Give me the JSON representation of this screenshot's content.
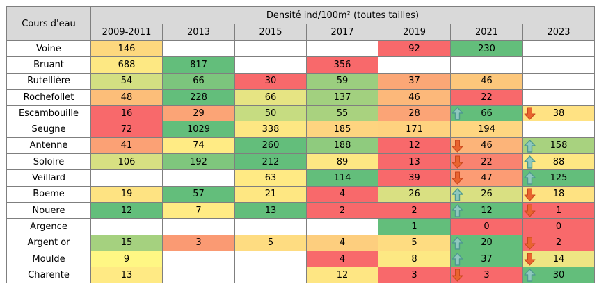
{
  "chart_data": {
    "type": "table",
    "title": "Densité ind/100m² (toutes tailles)",
    "row_header": "Cours d'eau",
    "columns": [
      "2009-2011",
      "2013",
      "2015",
      "2017",
      "2019",
      "2021",
      "2023"
    ],
    "color_scale": {
      "low": "#f8696b",
      "mid": "#ffeb84",
      "high": "#63be7b",
      "empty": "#ffffff"
    },
    "rows": [
      {
        "name": "Voine",
        "cells": [
          {
            "v": "146",
            "c": "#fdd87e"
          },
          {
            "v": "",
            "c": "#ffffff"
          },
          {
            "v": "",
            "c": "#ffffff"
          },
          {
            "v": "",
            "c": "#ffffff"
          },
          {
            "v": "92",
            "c": "#f8696b"
          },
          {
            "v": "230",
            "c": "#63be7b"
          },
          {
            "v": "",
            "c": "#ffffff"
          }
        ]
      },
      {
        "name": "Bruant",
        "cells": [
          {
            "v": "688",
            "c": "#fde883"
          },
          {
            "v": "817",
            "c": "#63be7b"
          },
          {
            "v": "",
            "c": "#ffffff"
          },
          {
            "v": "356",
            "c": "#f8696b"
          },
          {
            "v": "",
            "c": "#ffffff"
          },
          {
            "v": "",
            "c": "#ffffff"
          },
          {
            "v": "",
            "c": "#ffffff"
          }
        ]
      },
      {
        "name": "Rutellière",
        "cells": [
          {
            "v": "54",
            "c": "#d3df82"
          },
          {
            "v": "66",
            "c": "#7cc57d"
          },
          {
            "v": "30",
            "c": "#f8696b"
          },
          {
            "v": "59",
            "c": "#9bce7f"
          },
          {
            "v": "37",
            "c": "#fba776"
          },
          {
            "v": "46",
            "c": "#fcc77b"
          },
          {
            "v": "",
            "c": "#ffffff"
          }
        ]
      },
      {
        "name": "Rochefollet",
        "cells": [
          {
            "v": "48",
            "c": "#fcbe79"
          },
          {
            "v": "228",
            "c": "#63be7b"
          },
          {
            "v": "66",
            "c": "#e6e483"
          },
          {
            "v": "137",
            "c": "#a2d07f"
          },
          {
            "v": "46",
            "c": "#fcb87a"
          },
          {
            "v": "22",
            "c": "#f8696b"
          },
          {
            "v": "",
            "c": "#ffffff"
          }
        ]
      },
      {
        "name": "Escambouille",
        "cells": [
          {
            "v": "16",
            "c": "#f8696b"
          },
          {
            "v": "29",
            "c": "#fba476"
          },
          {
            "v": "50",
            "c": "#c6dc81"
          },
          {
            "v": "55",
            "c": "#a9d27f"
          },
          {
            "v": "28",
            "c": "#fba476"
          },
          {
            "v": "66",
            "c": "#63be7b",
            "trend": "up"
          },
          {
            "v": "38",
            "c": "#ffe283",
            "trend": "down"
          }
        ]
      },
      {
        "name": "Seugne",
        "cells": [
          {
            "v": "72",
            "c": "#f8696b"
          },
          {
            "v": "1029",
            "c": "#63be7b"
          },
          {
            "v": "338",
            "c": "#fde783"
          },
          {
            "v": "185",
            "c": "#fed480"
          },
          {
            "v": "171",
            "c": "#fed27f"
          },
          {
            "v": "194",
            "c": "#fed681"
          },
          {
            "v": "",
            "c": "#ffffff"
          }
        ]
      },
      {
        "name": "Antenne",
        "cells": [
          {
            "v": "41",
            "c": "#fba175"
          },
          {
            "v": "74",
            "c": "#ffeb84"
          },
          {
            "v": "260",
            "c": "#63be7b"
          },
          {
            "v": "188",
            "c": "#8fcb7e"
          },
          {
            "v": "12",
            "c": "#f8696b"
          },
          {
            "v": "46",
            "c": "#fcb479",
            "trend": "down"
          },
          {
            "v": "158",
            "c": "#a8d27f",
            "trend": "up"
          }
        ]
      },
      {
        "name": "Soloire",
        "cells": [
          {
            "v": "106",
            "c": "#d7e082"
          },
          {
            "v": "192",
            "c": "#7fc67d"
          },
          {
            "v": "212",
            "c": "#63be7b"
          },
          {
            "v": "89",
            "c": "#fde783"
          },
          {
            "v": "13",
            "c": "#f8696b"
          },
          {
            "v": "22",
            "c": "#f98370",
            "trend": "down"
          },
          {
            "v": "88",
            "c": "#fee783",
            "trend": "up"
          }
        ]
      },
      {
        "name": "Veillard",
        "cells": [
          {
            "v": "",
            "c": "#ffffff"
          },
          {
            "v": "",
            "c": "#ffffff"
          },
          {
            "v": "63",
            "c": "#ffea84"
          },
          {
            "v": "114",
            "c": "#63be7b"
          },
          {
            "v": "39",
            "c": "#f8696b"
          },
          {
            "v": "47",
            "c": "#fc9c74",
            "trend": "down"
          },
          {
            "v": "125",
            "c": "#63be7b",
            "trend": "up"
          }
        ]
      },
      {
        "name": "Boeme",
        "cells": [
          {
            "v": "19",
            "c": "#fee382"
          },
          {
            "v": "57",
            "c": "#63be7b"
          },
          {
            "v": "21",
            "c": "#fee782"
          },
          {
            "v": "4",
            "c": "#f8696b"
          },
          {
            "v": "26",
            "c": "#d9e082"
          },
          {
            "v": "26",
            "c": "#d9e082",
            "trend": "up"
          },
          {
            "v": "18",
            "c": "#fee282",
            "trend": "down"
          }
        ]
      },
      {
        "name": "Nouere",
        "cells": [
          {
            "v": "12",
            "c": "#63be7b"
          },
          {
            "v": "7",
            "c": "#ffeb84"
          },
          {
            "v": "13",
            "c": "#63be7b"
          },
          {
            "v": "2",
            "c": "#f8696b"
          },
          {
            "v": "2",
            "c": "#f8696b"
          },
          {
            "v": "12",
            "c": "#63be7b",
            "trend": "up"
          },
          {
            "v": "1",
            "c": "#f8696b",
            "trend": "down"
          }
        ]
      },
      {
        "name": "Argence",
        "cells": [
          {
            "v": "",
            "c": "#ffffff"
          },
          {
            "v": "",
            "c": "#ffffff"
          },
          {
            "v": "",
            "c": "#ffffff"
          },
          {
            "v": "",
            "c": "#ffffff"
          },
          {
            "v": "1",
            "c": "#63be7b"
          },
          {
            "v": "0",
            "c": "#f8696b"
          },
          {
            "v": "0",
            "c": "#f8696b"
          }
        ]
      },
      {
        "name": "Argent or",
        "cells": [
          {
            "v": "15",
            "c": "#a5d17f"
          },
          {
            "v": "3",
            "c": "#fa9a73"
          },
          {
            "v": "5",
            "c": "#fedc81"
          },
          {
            "v": "4",
            "c": "#fdce7e"
          },
          {
            "v": "5",
            "c": "#fedc81"
          },
          {
            "v": "20",
            "c": "#63be7b",
            "trend": "up"
          },
          {
            "v": "2",
            "c": "#f8696b",
            "trend": "down"
          }
        ]
      },
      {
        "name": "Moulde",
        "cells": [
          {
            "v": "9",
            "c": "#fff784"
          },
          {
            "v": "",
            "c": "#ffffff"
          },
          {
            "v": "",
            "c": "#ffffff"
          },
          {
            "v": "4",
            "c": "#f8696b"
          },
          {
            "v": "8",
            "c": "#fde883"
          },
          {
            "v": "37",
            "c": "#63be7b",
            "trend": "up"
          },
          {
            "v": "14",
            "c": "#eee583",
            "trend": "down"
          }
        ]
      },
      {
        "name": "Charente",
        "cells": [
          {
            "v": "13",
            "c": "#ffea84"
          },
          {
            "v": "",
            "c": "#ffffff"
          },
          {
            "v": "",
            "c": "#ffffff"
          },
          {
            "v": "12",
            "c": "#fee683"
          },
          {
            "v": "3",
            "c": "#f8696b"
          },
          {
            "v": "3",
            "c": "#f8696b",
            "trend": "down"
          },
          {
            "v": "30",
            "c": "#63be7b",
            "trend": "up"
          }
        ]
      }
    ],
    "trend_icons": {
      "up": "teal-up-arrow-icon",
      "down": "orange-down-arrow-icon"
    },
    "trend_colors": {
      "up": "#4f9a8f",
      "down": "#d9542b"
    }
  }
}
